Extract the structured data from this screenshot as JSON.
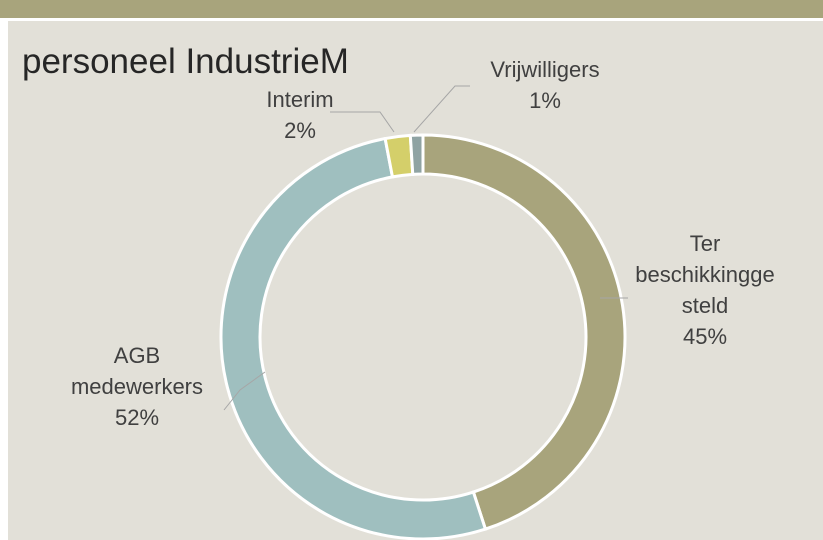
{
  "chart_data": {
    "type": "donut",
    "title": "personeel IndustrieM",
    "categories": [
      "Ter beschikkinggesteld",
      "AGB medewerkers",
      "Interim",
      "Vrijwilligers"
    ],
    "values": [
      45,
      52,
      2,
      1
    ],
    "value_labels": [
      "45%",
      "52%",
      "2%",
      "1%"
    ],
    "colors": [
      "#a8a47c",
      "#9fbfbf",
      "#d4cf6a",
      "#8fa3a3"
    ]
  }
}
